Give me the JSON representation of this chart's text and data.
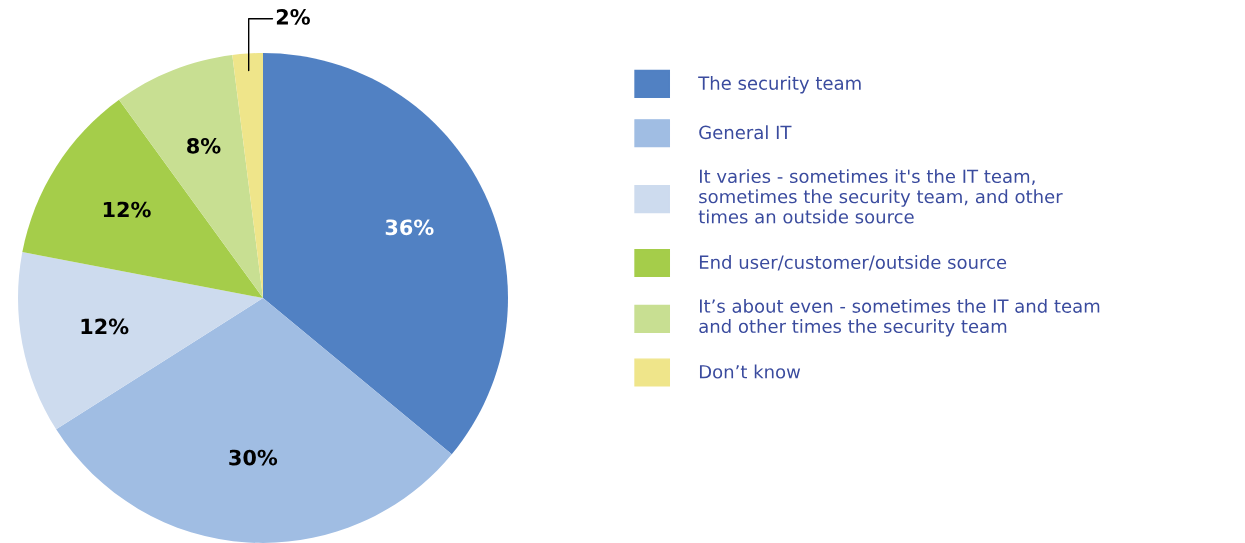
{
  "chart_data": {
    "type": "pie",
    "categories": [
      "The security team",
      "General IT",
      "It varies - sometimes it's the IT team,\nsometimes the security team, and other\ntimes an outside source",
      "End user/customer/outside source",
      "It’s about even - sometimes the IT and team\nand other times the security team",
      "Don’t know"
    ],
    "values": [
      36,
      30,
      12,
      12,
      8,
      2
    ],
    "value_labels": [
      "36%",
      "30%",
      "12%",
      "12%",
      "8%",
      "2%"
    ],
    "colors": [
      "#5181c3",
      "#a0bde3",
      "#cddbee",
      "#a5cd4a",
      "#c8df92",
      "#efe58a"
    ],
    "legend": "right"
  }
}
